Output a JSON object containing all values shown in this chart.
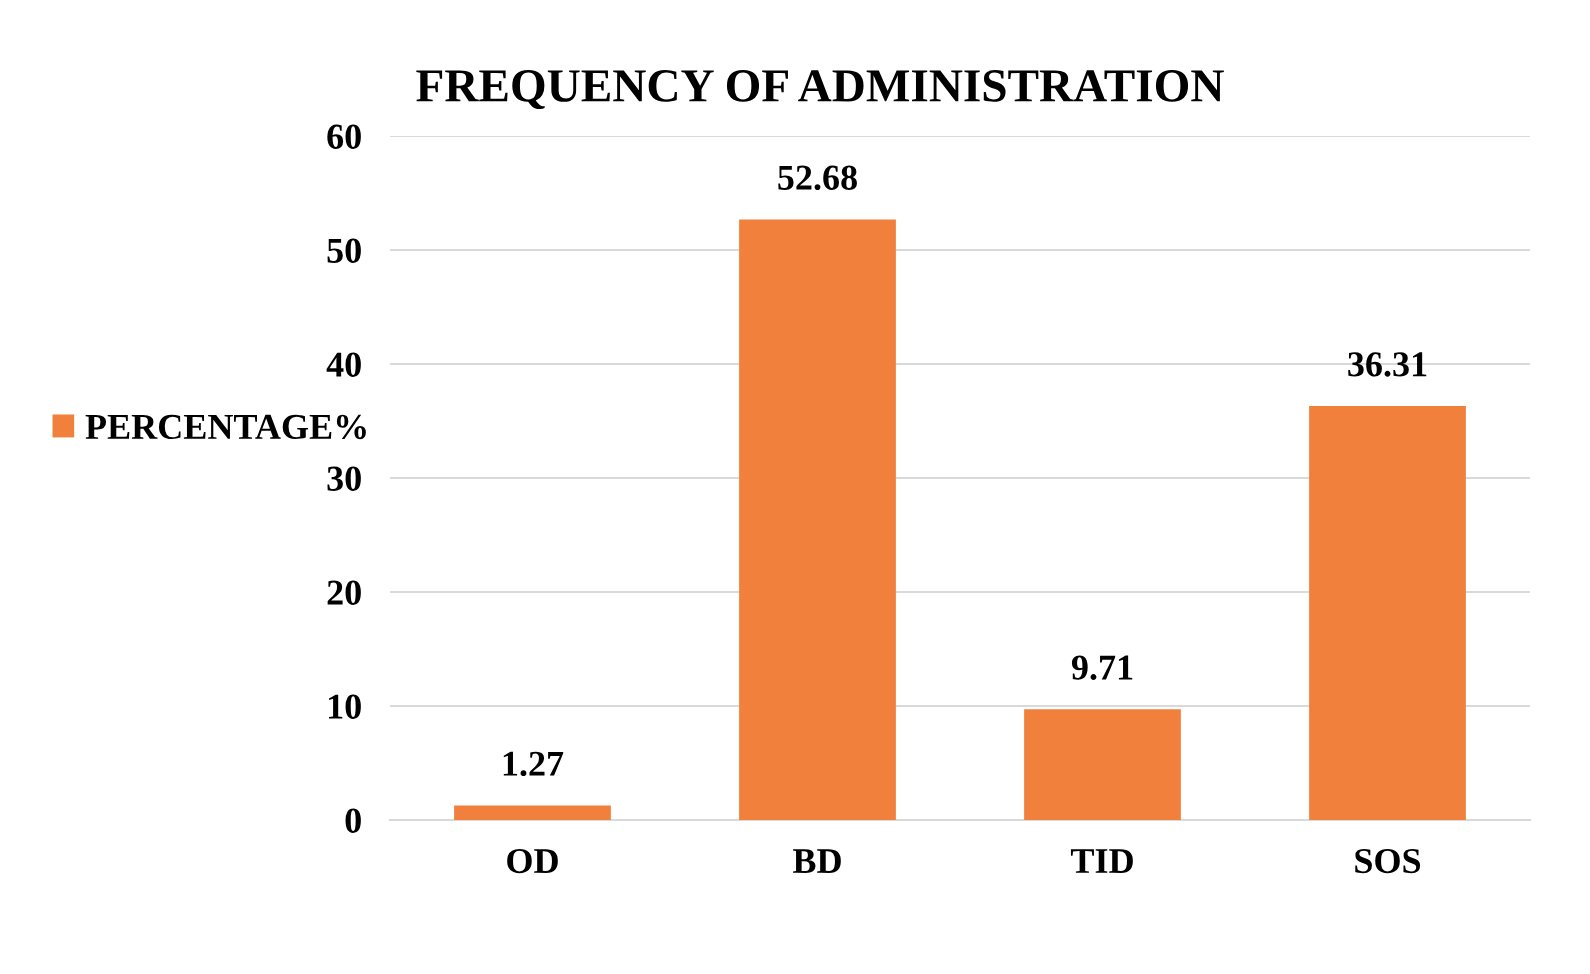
{
  "chart_data": {
    "type": "bar",
    "title": "FREQUENCY OF ADMINISTRATION",
    "categories": [
      "OD",
      "BD",
      "TID",
      "SOS"
    ],
    "series": [
      {
        "name": "PERCENTAGE%",
        "color": "#f0803c",
        "values": [
          1.27,
          52.68,
          9.71,
          36.31
        ]
      }
    ],
    "ylim": [
      0,
      60
    ],
    "yticks": [
      0,
      10,
      20,
      30,
      40,
      50,
      60
    ],
    "grid": "y",
    "legend": "left",
    "data_labels": true
  }
}
